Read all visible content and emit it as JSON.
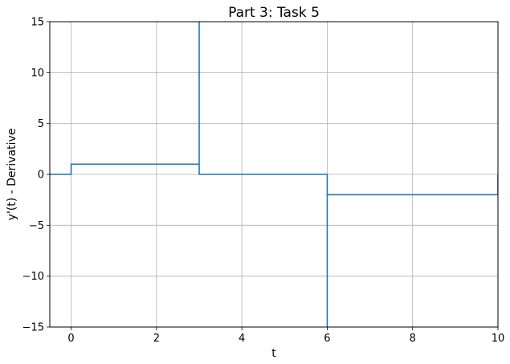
{
  "chart_data": {
    "type": "line",
    "title": "Part 3: Task 5",
    "xlabel": "t",
    "ylabel": "y'(t) - Derivative",
    "xlim": [
      -0.5,
      10
    ],
    "ylim": [
      -15,
      15
    ],
    "xticks": [
      0,
      2,
      4,
      6,
      8,
      10
    ],
    "xtick_labels": [
      "0",
      "2",
      "4",
      "6",
      "8",
      "10"
    ],
    "yticks": [
      -15,
      -10,
      -5,
      0,
      5,
      10,
      15
    ],
    "ytick_labels": [
      "−15",
      "−10",
      "−5",
      "0",
      "5",
      "10",
      "15"
    ],
    "grid": true,
    "series": [
      {
        "color": "#1f77b4",
        "x": [
          -0.5,
          0,
          0,
          3,
          3,
          3,
          3,
          6,
          6,
          6,
          6,
          10,
          10
        ],
        "y": [
          0,
          0,
          1,
          1,
          15,
          15,
          0,
          0,
          -15,
          -15,
          -2,
          -2,
          0
        ]
      }
    ]
  }
}
